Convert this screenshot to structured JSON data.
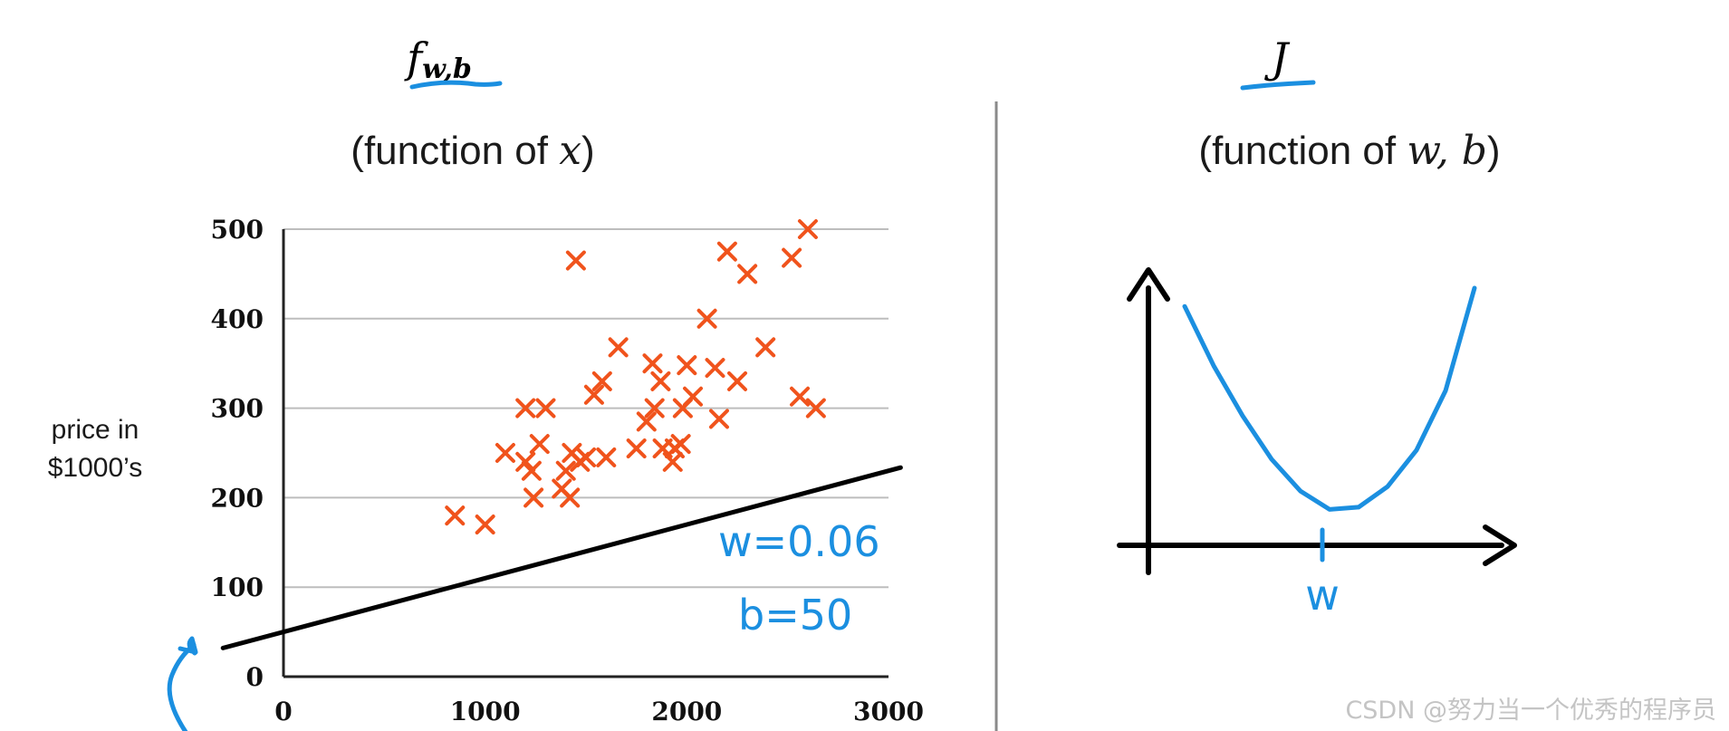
{
  "chart_data": [
    {
      "type": "scatter",
      "title": "f_{w,b}",
      "title_main": "f",
      "title_sub": "w,b",
      "subtitle_prefix": "(function of ",
      "subtitle_var": "x",
      "subtitle_suffix": ")",
      "xlabel": "",
      "ylabel_line1": "price in",
      "ylabel_line2": "$1000’s",
      "xlim": [
        0,
        3000
      ],
      "ylim": [
        0,
        500
      ],
      "xticks": [
        0,
        1000,
        2000,
        3000
      ],
      "yticks": [
        0,
        100,
        200,
        300,
        400,
        500
      ],
      "grid": true,
      "marker_color": "#f0531c",
      "line_color": "#000000",
      "points": [
        [
          850,
          180
        ],
        [
          1000,
          170
        ],
        [
          1100,
          250
        ],
        [
          1200,
          300
        ],
        [
          1200,
          240
        ],
        [
          1230,
          230
        ],
        [
          1240,
          200
        ],
        [
          1270,
          260
        ],
        [
          1300,
          300
        ],
        [
          1380,
          210
        ],
        [
          1400,
          230
        ],
        [
          1420,
          200
        ],
        [
          1430,
          250
        ],
        [
          1450,
          465
        ],
        [
          1470,
          240
        ],
        [
          1500,
          245
        ],
        [
          1540,
          315
        ],
        [
          1580,
          330
        ],
        [
          1600,
          245
        ],
        [
          1660,
          368
        ],
        [
          1750,
          255
        ],
        [
          1800,
          285
        ],
        [
          1830,
          350
        ],
        [
          1840,
          300
        ],
        [
          1870,
          330
        ],
        [
          1880,
          255
        ],
        [
          1930,
          240
        ],
        [
          1940,
          255
        ],
        [
          1970,
          260
        ],
        [
          1980,
          300
        ],
        [
          2000,
          348
        ],
        [
          2030,
          313
        ],
        [
          2100,
          400
        ],
        [
          2140,
          345
        ],
        [
          2160,
          288
        ],
        [
          2200,
          475
        ],
        [
          2250,
          330
        ],
        [
          2300,
          450
        ],
        [
          2390,
          368
        ],
        [
          2520,
          468
        ],
        [
          2560,
          313
        ],
        [
          2600,
          500
        ],
        [
          2640,
          300
        ]
      ],
      "fitted_line": {
        "w": 0.06,
        "b": 50,
        "x_range": [
          -300,
          3060
        ]
      },
      "annotations": {
        "w_label": "w=0.06",
        "b_label": "b=50",
        "annotation_color": "#1b8fe0"
      }
    },
    {
      "type": "line",
      "title": "J",
      "subtitle_prefix": "(function of ",
      "subtitle_var": "w, b",
      "subtitle_suffix": ")",
      "xlabel": "w",
      "ylabel": "",
      "curve_color": "#1b8fe0",
      "description_points_w": [
        0,
        0.1,
        0.2,
        0.3,
        0.4,
        0.5,
        0.6,
        0.7,
        0.8,
        0.9,
        1.0
      ],
      "description_points_J": [
        0.92,
        0.66,
        0.44,
        0.25,
        0.11,
        0.03,
        0.04,
        0.13,
        0.29,
        0.55,
        1.0
      ]
    }
  ],
  "watermark": "CSDN @努力当一个优秀的程序员"
}
